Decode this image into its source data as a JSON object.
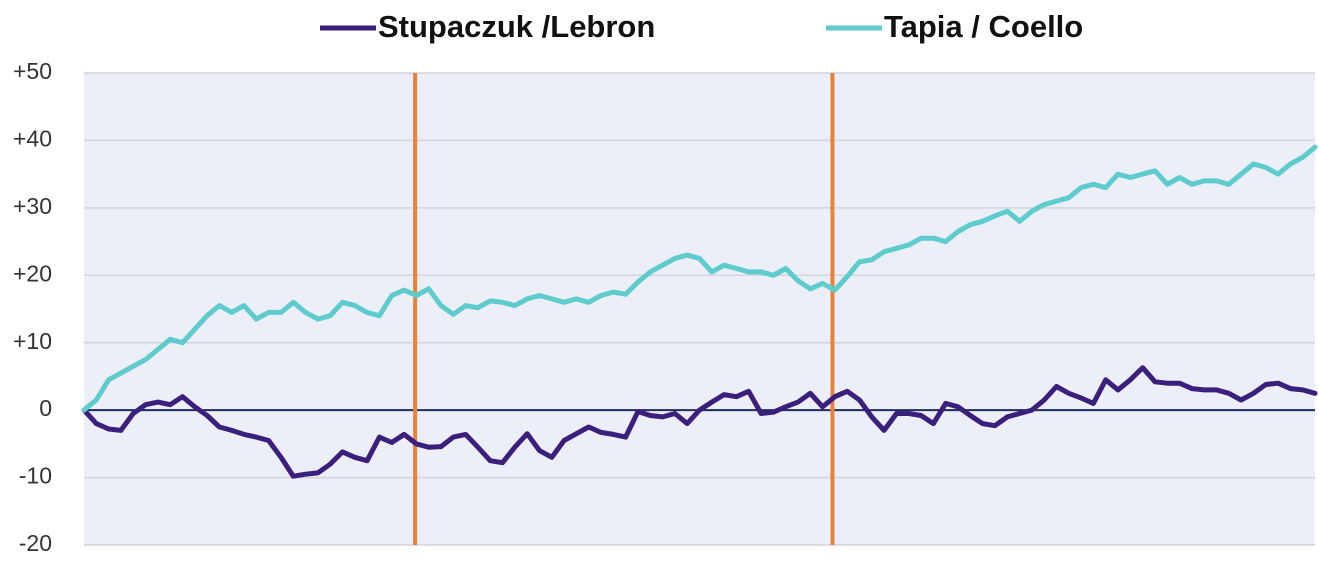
{
  "chart_data": {
    "type": "line",
    "series": [
      {
        "name": "Stupaczuk /Lebron",
        "color": "#3b1f7c",
        "values": [
          0,
          -2,
          -2.8,
          -3,
          -0.5,
          0.8,
          1.2,
          0.8,
          2,
          0.5,
          -0.8,
          -2.5,
          -3,
          -3.6,
          -4,
          -4.5,
          -7,
          -9.8,
          -9.5,
          -9.3,
          -8,
          -6.2,
          -7,
          -7.5,
          -4,
          -4.8,
          -3.6,
          -5,
          -5.5,
          -5.4,
          -4,
          -3.6,
          -5.5,
          -7.5,
          -7.8,
          -5.5,
          -3.5,
          -6,
          -7,
          -4.5,
          -3.5,
          -2.5,
          -3.3,
          -3.6,
          -4,
          -0.2,
          -0.8,
          -1,
          -0.5,
          -2,
          0,
          1.2,
          2.3,
          2,
          2.8,
          -0.5,
          -0.3,
          0.5,
          1.2,
          2.5,
          0.5,
          2,
          2.8,
          1.5,
          -1,
          -3,
          -0.5,
          -0.5,
          -0.8,
          -2,
          1,
          0.5,
          -0.8,
          -2,
          -2.3,
          -1,
          -0.5,
          0,
          1.5,
          3.5,
          2.5,
          1.8,
          1,
          4.5,
          3,
          4.5,
          6.3,
          4.2,
          4,
          4,
          3.2,
          3,
          3,
          2.5,
          1.5,
          2.5,
          3.8,
          4,
          3.2,
          3,
          2.5
        ]
      },
      {
        "name": "Tapia / Coello",
        "color": "#5ecbcd",
        "values": [
          0,
          1.5,
          4.5,
          5.5,
          6.5,
          7.5,
          9,
          10.5,
          10,
          12,
          14,
          15.5,
          14.5,
          15.5,
          13.5,
          14.5,
          14.5,
          16,
          14.5,
          13.5,
          14,
          16,
          15.5,
          14.5,
          14,
          17,
          17.8,
          17,
          18,
          15.5,
          14.2,
          15.5,
          15.2,
          16.2,
          16,
          15.5,
          16.5,
          17,
          16.5,
          16,
          16.5,
          16,
          17,
          17.5,
          17.2,
          19,
          20.5,
          21.5,
          22.5,
          23,
          22.5,
          20.5,
          21.5,
          21,
          20.5,
          20.5,
          20,
          21,
          19.2,
          18,
          18.8,
          17.8,
          19.8,
          22,
          22.3,
          23.5,
          24,
          24.5,
          25.5,
          25.5,
          25,
          26.5,
          27.5,
          28,
          28.8,
          29.5,
          28,
          29.5,
          30.5,
          31,
          31.5,
          33,
          33.5,
          33,
          35,
          34.5,
          35,
          35.5,
          33.5,
          34.5,
          33.5,
          34,
          34,
          33.5,
          35,
          36.5,
          36,
          35,
          36.5,
          37.5,
          39
        ]
      }
    ],
    "xlim": [
      0,
      100
    ],
    "vlines": [
      26.9,
      60.8
    ],
    "vline_color": "#e8823a",
    "ylim": [
      -20,
      50
    ],
    "yticks": [
      -20,
      -10,
      0,
      {
        "value": 10,
        "label": "+10"
      },
      {
        "value": 20,
        "label": "+20"
      },
      {
        "value": 30,
        "label": "+30"
      },
      {
        "value": 40,
        "label": "+40"
      },
      {
        "value": 50,
        "label": "+50"
      }
    ],
    "grid": true,
    "zero_line_color": "#1f2d5a",
    "legend": "top"
  }
}
